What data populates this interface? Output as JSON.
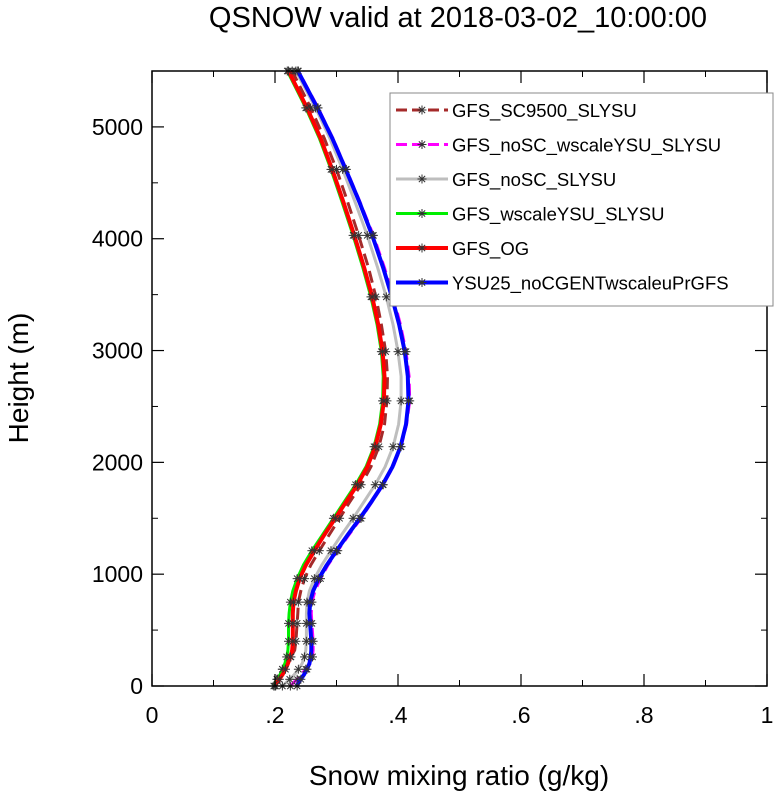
{
  "chart_data": {
    "type": "line",
    "title": "QSNOW valid at 2018-03-02_10:00:00",
    "xlabel": "Snow mixing ratio (g/kg)",
    "ylabel": "Height (m)",
    "xlim": [
      0,
      1
    ],
    "ylim": [
      0,
      5500
    ],
    "xticks": [
      0,
      0.2,
      0.4,
      0.6,
      0.8,
      1
    ],
    "xtick_labels": [
      "0",
      ".2",
      ".4",
      ".6",
      ".8",
      "1"
    ],
    "yticks": [
      0,
      1000,
      2000,
      3000,
      4000,
      5000
    ],
    "ytick_labels": [
      "0",
      "1000",
      "2000",
      "3000",
      "4000",
      "5000"
    ],
    "grid": false,
    "legend_position": "top-right",
    "y": [
      0,
      30,
      60,
      100,
      150,
      200,
      260,
      320,
      400,
      480,
      560,
      650,
      750,
      850,
      960,
      1080,
      1210,
      1350,
      1500,
      1650,
      1800,
      1960,
      2140,
      2340,
      2550,
      2770,
      2990,
      3230,
      3480,
      3740,
      4030,
      4330,
      4620,
      4900,
      5170,
      5500
    ],
    "series": [
      {
        "name": "GFS_SC9500_SLYSU",
        "color": "#a52a2a",
        "dash": "12,6",
        "width": 3,
        "x": [
          0.2,
          0.2,
          0.203,
          0.207,
          0.212,
          0.218,
          0.226,
          0.232,
          0.234,
          0.235,
          0.236,
          0.237,
          0.238,
          0.242,
          0.248,
          0.258,
          0.272,
          0.288,
          0.305,
          0.322,
          0.34,
          0.356,
          0.369,
          0.378,
          0.382,
          0.383,
          0.38,
          0.373,
          0.364,
          0.352,
          0.336,
          0.318,
          0.3,
          0.28,
          0.258,
          0.228
        ]
      },
      {
        "name": "GFS_noSC_wscaleYSU_SLYSU",
        "color": "#ff00ff",
        "dash": "12,6",
        "width": 3,
        "x": [
          0.225,
          0.23,
          0.236,
          0.242,
          0.25,
          0.257,
          0.261,
          0.262,
          0.262,
          0.261,
          0.26,
          0.259,
          0.26,
          0.265,
          0.274,
          0.286,
          0.302,
          0.32,
          0.34,
          0.358,
          0.376,
          0.392,
          0.405,
          0.414,
          0.419,
          0.418,
          0.413,
          0.404,
          0.392,
          0.378,
          0.36,
          0.338,
          0.316,
          0.294,
          0.27,
          0.238
        ]
      },
      {
        "name": "GFS_noSC_SLYSU",
        "color": "#bebebe",
        "dash": "",
        "width": 3,
        "x": [
          0.212,
          0.218,
          0.224,
          0.231,
          0.238,
          0.244,
          0.248,
          0.25,
          0.251,
          0.251,
          0.251,
          0.251,
          0.252,
          0.256,
          0.264,
          0.276,
          0.291,
          0.308,
          0.327,
          0.345,
          0.363,
          0.379,
          0.392,
          0.401,
          0.405,
          0.405,
          0.4,
          0.392,
          0.381,
          0.367,
          0.35,
          0.33,
          0.31,
          0.289,
          0.266,
          0.234
        ]
      },
      {
        "name": "GFS_wscaleYSU_SLYSU",
        "color": "#00ee00",
        "dash": "",
        "width": 3,
        "x": [
          0.198,
          0.2,
          0.204,
          0.208,
          0.212,
          0.216,
          0.219,
          0.221,
          0.222,
          0.222,
          0.222,
          0.223,
          0.225,
          0.229,
          0.236,
          0.246,
          0.26,
          0.277,
          0.295,
          0.313,
          0.331,
          0.348,
          0.361,
          0.37,
          0.375,
          0.376,
          0.373,
          0.366,
          0.356,
          0.343,
          0.327,
          0.309,
          0.291,
          0.272,
          0.25,
          0.22
        ]
      },
      {
        "name": "GFS_OG",
        "color": "#ff0000",
        "dash": "",
        "width": 4,
        "x": [
          0.201,
          0.203,
          0.207,
          0.212,
          0.217,
          0.221,
          0.225,
          0.228,
          0.229,
          0.229,
          0.229,
          0.229,
          0.23,
          0.234,
          0.24,
          0.25,
          0.264,
          0.28,
          0.298,
          0.316,
          0.334,
          0.35,
          0.363,
          0.372,
          0.377,
          0.378,
          0.375,
          0.368,
          0.358,
          0.345,
          0.329,
          0.311,
          0.293,
          0.274,
          0.252,
          0.222
        ]
      },
      {
        "name": "YSU25_noCGENTwscaleuPrGFS",
        "color": "#0000ff",
        "dash": "",
        "width": 4,
        "x": [
          0.236,
          0.238,
          0.242,
          0.247,
          0.252,
          0.256,
          0.258,
          0.259,
          0.259,
          0.258,
          0.257,
          0.256,
          0.257,
          0.262,
          0.271,
          0.284,
          0.3,
          0.318,
          0.338,
          0.357,
          0.375,
          0.391,
          0.404,
          0.413,
          0.417,
          0.416,
          0.411,
          0.402,
          0.39,
          0.376,
          0.358,
          0.337,
          0.315,
          0.293,
          0.269,
          0.237
        ]
      }
    ]
  }
}
